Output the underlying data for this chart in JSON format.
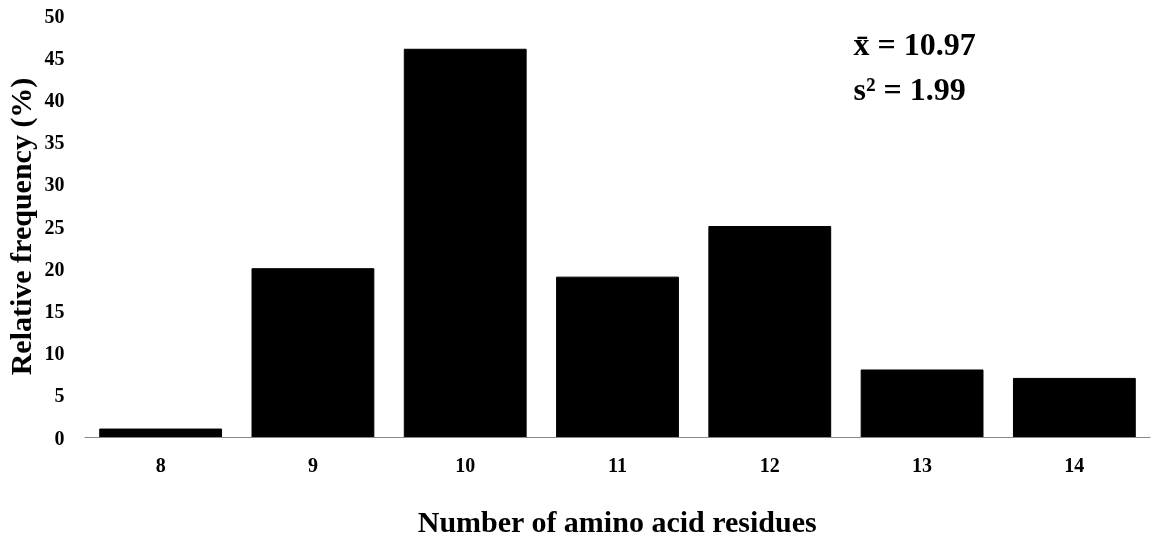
{
  "chart_data": {
    "type": "bar",
    "xlabel": "Number of amino acid residues",
    "ylabel": "Relative frequency (%)",
    "categories": [
      "8",
      "9",
      "10",
      "11",
      "12",
      "13",
      "14"
    ],
    "values": [
      1,
      20,
      46,
      19,
      25,
      8,
      7
    ],
    "color": "#000000",
    "ylim": [
      0,
      50
    ],
    "yticks": [
      0,
      5,
      10,
      15,
      20,
      25,
      30,
      35,
      40,
      45,
      50
    ],
    "annotations": [
      "x̄ = 10.97",
      "s² = 1.99"
    ]
  }
}
